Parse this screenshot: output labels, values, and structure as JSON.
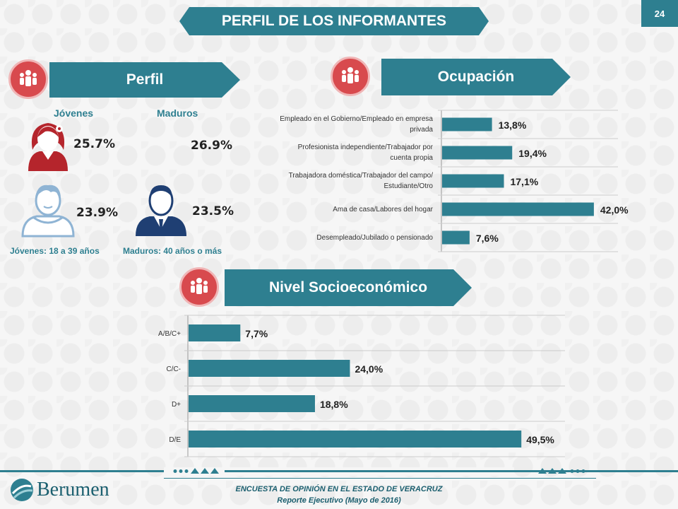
{
  "title": "PERFIL DE LOS INFORMANTES",
  "page_number": "24",
  "sections": {
    "perfil": "Perfil",
    "ocupacion": "Ocupación",
    "nivel": "Nivel Socioeconómico"
  },
  "perfil": {
    "jovenes_label": "Jóvenes",
    "maduros_label": "Maduros",
    "mujer_joven": "25.7%",
    "mujer_madura": "26.9%",
    "hombre_joven": "23.9%",
    "hombre_maduro": "23.5%",
    "jovenes_caption": "Jóvenes: 18  a  39 años",
    "maduros_caption": "Maduros: 40 años o más"
  },
  "icons": {
    "section": "people-group-icon",
    "woman": "woman-icon",
    "boy": "young-man-icon",
    "man": "man-in-suit-icon"
  },
  "colors": {
    "accent": "#2e7f90",
    "icon_red": "#d84a4e",
    "woman": "#b5252c"
  },
  "chart_data": [
    {
      "type": "bar",
      "orientation": "horizontal",
      "title": "Ocupación",
      "categories": [
        "Empleado en el Gobierno/Empleado en empresa privada",
        "Profesionista independiente/Trabajador por cuenta propia",
        "Trabajadora doméstica/Trabajador del campo/Estudiante/Otro",
        "Ama de casa/Labores del hogar",
        "Desempleado/Jubilado o pensionado"
      ],
      "values": [
        13.8,
        19.4,
        17.1,
        42.0,
        7.6
      ],
      "labels": [
        "13,8%",
        "19,4%",
        "17,1%",
        "42,0%",
        "7,6%"
      ],
      "xlim": [
        0,
        43
      ]
    },
    {
      "type": "bar",
      "orientation": "horizontal",
      "title": "Nivel Socioeconómico",
      "categories": [
        "A/B/C+",
        "C/C-",
        "D+",
        "D/E"
      ],
      "values": [
        7.7,
        24.0,
        18.8,
        49.5
      ],
      "labels": [
        "7,7%",
        "24,0%",
        "18,8%",
        "49,5%"
      ],
      "xlim": [
        0,
        52
      ]
    }
  ],
  "footer": {
    "brand": "Berumen",
    "line1": "ENCUESTA DE OPINIÓN EN EL ESTADO DE  VERACRUZ",
    "line2": "Reporte  Ejecutivo  (Mayo de 2016)"
  }
}
